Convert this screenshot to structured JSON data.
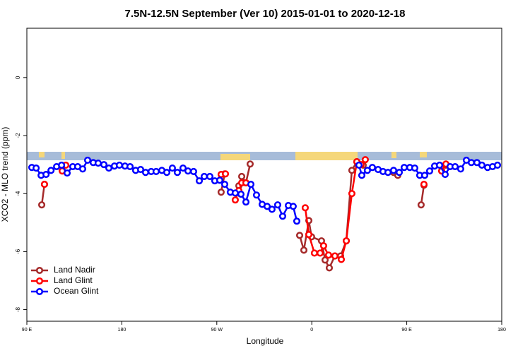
{
  "chart_data": {
    "type": "line",
    "title": "7.5N-12.5N September (Ver 10)   2015-01-01 to 2020-12-18",
    "x_label": "Longitude",
    "y_label": "XCO2 - MLO trend (ppm)",
    "xlim": [
      90,
      540
    ],
    "ylim": [
      -8.4,
      1.7
    ],
    "xticks": [
      {
        "value": 90,
        "label": "90 E"
      },
      {
        "value": 180,
        "label": "180"
      },
      {
        "value": 270,
        "label": "90 W"
      },
      {
        "value": 360,
        "label": "0"
      },
      {
        "value": 450,
        "label": "90 E"
      },
      {
        "value": 540,
        "label": "180"
      }
    ],
    "yticks": [
      0,
      -2,
      -4,
      -6,
      -8
    ],
    "legend": "bottom-left",
    "series": [
      {
        "name": "Land Nadir",
        "color": "#a52a2a",
        "x": [
          104.1,
          106.7,
          null,
          274.1,
          277.5,
          null,
          290.9,
          293.6,
          297.6,
          301.6,
          null,
          348.5,
          352.5,
          357.2,
          359.8,
          369.2,
          372.6,
          376.6,
          381.9,
          387.3,
          392.7,
          398,
          402.7,
          408.7,
          null,
          437.5,
          441.5,
          null,
          463.6,
          466.3,
          null,
          483.1,
          487.1
        ],
        "values": [
          -4.39,
          -3.68,
          null,
          -3.95,
          -3.32,
          null,
          -3.73,
          -3.41,
          -3.63,
          -2.98,
          null,
          -5.44,
          -5.95,
          -4.93,
          -5.49,
          -5.63,
          -6.29,
          -6.56,
          -6.15,
          -6.15,
          -5.63,
          -3.2,
          -2.9,
          -3.02,
          null,
          -3.27,
          -3.37,
          null,
          -4.39,
          -3.71,
          null,
          -3.22,
          -3.02
        ]
      },
      {
        "name": "Land Glint",
        "color": "#ff0000",
        "x": [
          106.7,
          null,
          123.5,
          126.9,
          null,
          274.1,
          278.2,
          null,
          287.5,
          290.9,
          293.6,
          297.6,
          null,
          353.8,
          357.2,
          362.5,
          367.9,
          371.2,
          375.9,
          381.9,
          388,
          392.7,
          398,
          402.7,
          406.7,
          410.7,
          null,
          466.3,
          null,
          483.1,
          487.1
        ],
        "values": [
          -3.68,
          null,
          -3.22,
          -3.02,
          null,
          -3.34,
          -3.32,
          null,
          -4.22,
          -3.9,
          -3.63,
          -3.63,
          null,
          -4.49,
          -5.41,
          -6.05,
          -6.05,
          -5.8,
          -6.12,
          -6.15,
          -6.27,
          -5.63,
          -4.0,
          -2.9,
          -3.0,
          -2.83,
          null,
          -3.68,
          null,
          -3.22,
          -2.98
        ]
      },
      {
        "name": "Ocean Glint",
        "color": "#0000ff",
        "x": [
          94.7,
          98.8,
          103.5,
          108.2,
          112.9,
          118.2,
          122.9,
          128.2,
          133.5,
          138.2,
          142.9,
          147.6,
          152.9,
          157.6,
          163,
          167.7,
          173,
          177.7,
          183,
          187.8,
          193.1,
          197.8,
          202.5,
          207.8,
          212.5,
          217.9,
          222.6,
          227.9,
          232.6,
          238,
          242.7,
          248,
          253.4,
          258.1,
          263.4,
          268.1,
          272.8,
          277.5,
          282.8,
          287.5,
          292.9,
          297.6,
          302.3,
          307.6,
          313,
          317.7,
          322.3,
          327.7,
          332.4,
          337.8,
          342.4,
          345.8,
          null,
          404.7,
          407.4,
          412.7,
          417.4,
          422.8,
          427.5,
          432.2,
          437.5,
          442.9,
          447.6,
          452.9,
          457.6,
          462.3,
          467,
          471.7,
          476.4,
          481.1,
          486.4,
          491.1,
          495.8,
          501.1,
          506.5,
          511.2,
          516.5,
          521.2,
          526.6,
          531.3,
          536
        ],
        "values": [
          -3.1,
          -3.12,
          -3.37,
          -3.34,
          -3.2,
          -3.07,
          -3.02,
          -3.29,
          -3.07,
          -3.07,
          -3.15,
          -2.85,
          -2.93,
          -2.95,
          -3.0,
          -3.12,
          -3.05,
          -3.02,
          -3.05,
          -3.07,
          -3.2,
          -3.17,
          -3.27,
          -3.24,
          -3.24,
          -3.2,
          -3.27,
          -3.12,
          -3.27,
          -3.12,
          -3.22,
          -3.24,
          -3.56,
          -3.41,
          -3.41,
          -3.56,
          -3.54,
          -3.68,
          -3.95,
          -3.98,
          -4.02,
          -4.29,
          -3.68,
          -4.05,
          -4.37,
          -4.44,
          -4.54,
          -4.39,
          -4.78,
          -4.41,
          -4.44,
          -4.95,
          null,
          -3.02,
          -3.37,
          -3.2,
          -3.1,
          -3.17,
          -3.24,
          -3.27,
          -3.2,
          -3.27,
          -3.1,
          -3.1,
          -3.12,
          -3.37,
          -3.37,
          -3.22,
          -3.05,
          -3.02,
          -3.34,
          -3.07,
          -3.07,
          -3.15,
          -2.85,
          -2.93,
          -2.93,
          -3.02,
          -3.1,
          -3.07,
          -3.02
        ]
      }
    ]
  }
}
